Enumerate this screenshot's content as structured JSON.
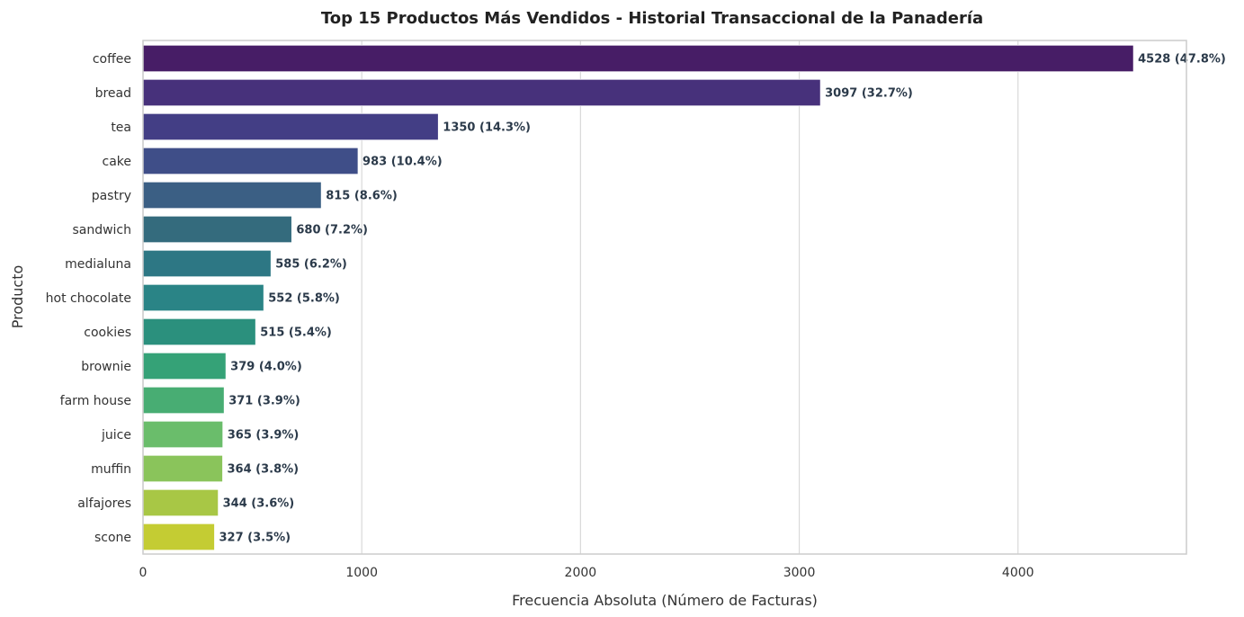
{
  "chart_data": {
    "type": "bar",
    "orientation": "horizontal",
    "title": "Top 15 Productos Más Vendidos - Historial Transaccional de la Panadería",
    "xlabel": "Frecuencia Absoluta (Número de Facturas)",
    "ylabel": "Producto",
    "xlim": [
      0,
      4770
    ],
    "xticks": [
      0,
      1000,
      2000,
      3000,
      4000
    ],
    "grid": "vertical",
    "legend": "none",
    "categories": [
      "coffee",
      "bread",
      "tea",
      "cake",
      "pastry",
      "sandwich",
      "medialuna",
      "hot chocolate",
      "cookies",
      "brownie",
      "farm house",
      "juice",
      "muffin",
      "alfajores",
      "scone"
    ],
    "values": [
      4528,
      3097,
      1350,
      983,
      815,
      680,
      585,
      552,
      515,
      379,
      371,
      365,
      364,
      344,
      327
    ],
    "data_labels": [
      "4528 (47.8%)",
      "3097 (32.7%)",
      "1350 (14.3%)",
      "983 (10.4%)",
      "815 (8.6%)",
      "680 (7.2%)",
      "585 (6.2%)",
      "552 (5.8%)",
      "515 (5.4%)",
      "379 (4.0%)",
      "371 (3.9%)",
      "365 (3.9%)",
      "364 (3.8%)",
      "344 (3.6%)",
      "327 (3.5%)"
    ],
    "colors": [
      "#482173",
      "#472d7b",
      "#433e85",
      "#3e4989",
      "#38598c",
      "#33638d",
      "#2d708e",
      "#287d8e",
      "#23888e",
      "#1f988b",
      "#22a884",
      "#35b779",
      "#54c568",
      "#7ad151",
      "#a5db36",
      "#cde11d"
    ],
    "bar_colors": [
      "#471d66",
      "#47317b",
      "#433e85",
      "#3f4e88",
      "#3b5f84",
      "#346b7d",
      "#2d7784",
      "#2a8486",
      "#2b907d",
      "#35a277",
      "#48ad73",
      "#6abd6b",
      "#8ac45b",
      "#a8c745",
      "#c4cc33"
    ]
  }
}
